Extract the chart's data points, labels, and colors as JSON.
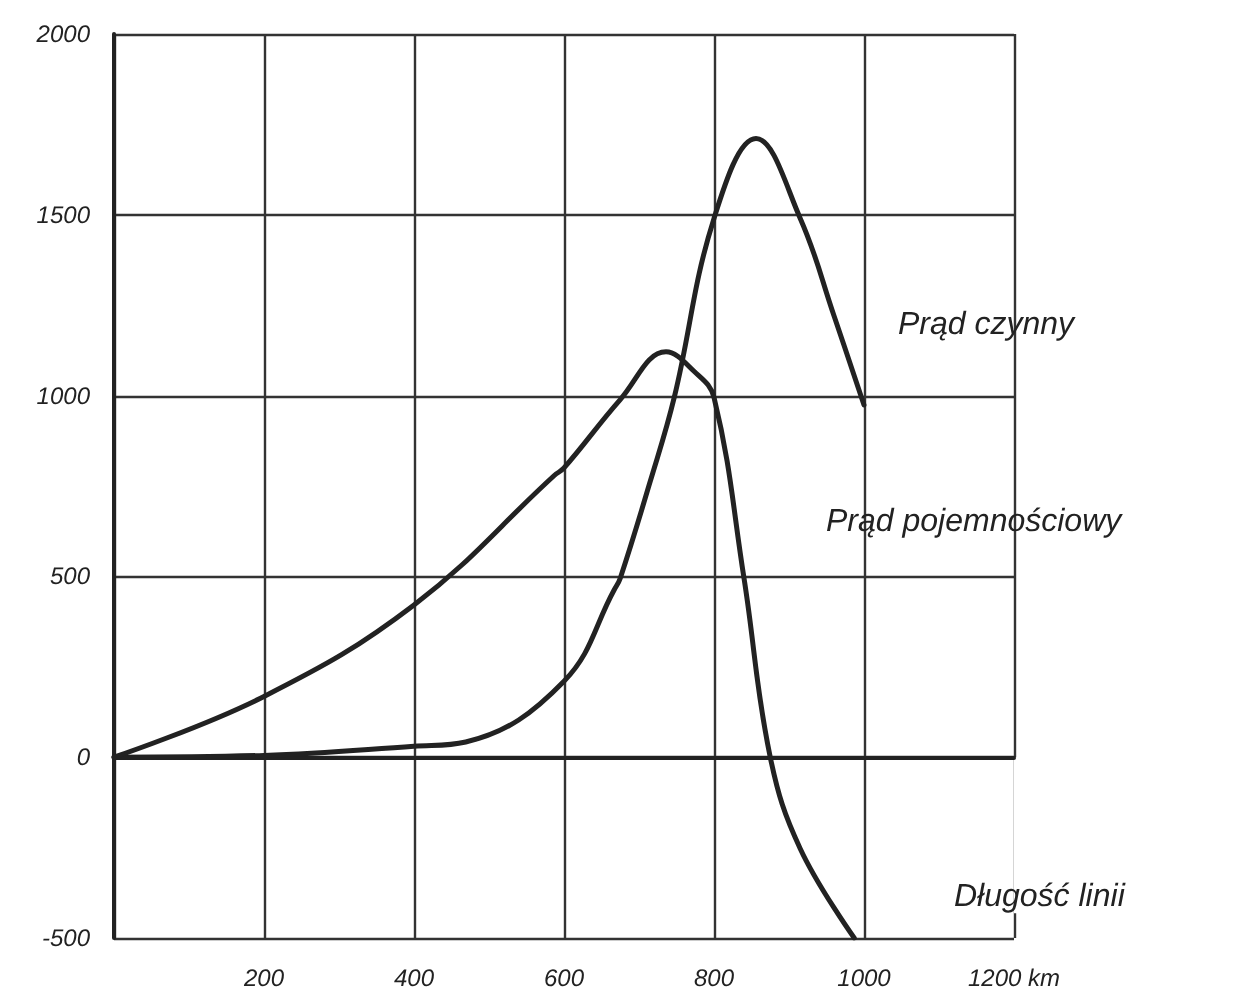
{
  "chart_data": {
    "type": "line",
    "xlabel": "Długość linii",
    "xlim": [
      0,
      1200
    ],
    "xticks": [
      {
        "value": 0,
        "label": null
      },
      200,
      400,
      600,
      800,
      1000,
      {
        "value": 1200,
        "label": "1200 km"
      }
    ],
    "ylim": [
      -500,
      2000
    ],
    "yticks": [
      -500,
      0,
      500,
      1000,
      1500,
      2000
    ],
    "grid": true,
    "legend": false,
    "marker": "none",
    "line_style": "solid",
    "series": [
      {
        "name": "Prąd czynny",
        "color": "#222222",
        "x": [
          0,
          200,
          400,
          469,
          600,
          667,
          675,
          715,
          747,
          800,
          856,
          915,
          960,
          1000
        ],
        "values": [
          0,
          5,
          30,
          42,
          210,
          463,
          495,
          763,
          995,
          1490,
          1711,
          1490,
          1221,
          974
        ]
      },
      {
        "name": "Prąd pojemnościowy",
        "color": "#222222",
        "x": [
          0,
          200,
          400,
          587,
          600,
          675,
          736,
          773,
          800,
          840,
          875,
          915,
          987
        ],
        "values": [
          0,
          168,
          421,
          779,
          800,
          989,
          1121,
          1068,
          995,
          495,
          0,
          -253,
          -500
        ]
      }
    ]
  }
}
